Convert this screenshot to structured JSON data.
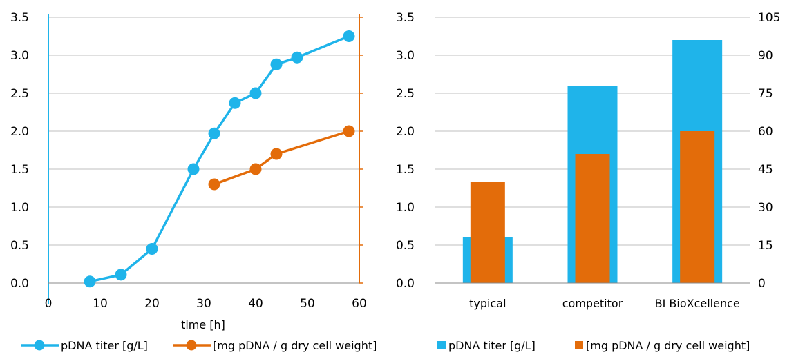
{
  "colors": {
    "blue": "#1fb4ea",
    "orange": "#e36c0a",
    "grid": "#bfbfbf",
    "axis": "#888888"
  },
  "chart_data": [
    {
      "type": "line",
      "xlabel": "time [h]",
      "xlim": [
        0,
        60
      ],
      "x_ticks": [
        "0",
        "10",
        "20",
        "30",
        "40",
        "50",
        "60"
      ],
      "ylim_left": [
        0,
        3.5
      ],
      "y_ticks_left": [
        "0.0",
        "0.5",
        "1.0",
        "1.5",
        "2.0",
        "2.5",
        "3.0",
        "3.5"
      ],
      "right_axis_labels": "none",
      "grid": "horizontal",
      "legend_position": "bottom",
      "series": [
        {
          "name": "pDNA titer [g/L]",
          "axis": "left",
          "color": "blue",
          "x": [
            8,
            14,
            20,
            28,
            32,
            36,
            40,
            44,
            48,
            58
          ],
          "y": [
            0.02,
            0.11,
            0.45,
            1.5,
            1.97,
            2.37,
            2.5,
            2.88,
            2.97,
            3.25
          ]
        },
        {
          "name": "[mg pDNA / g dry cell weight]",
          "axis": "left",
          "color": "orange",
          "x": [
            32,
            40,
            44,
            58
          ],
          "y": [
            1.3,
            1.5,
            1.7,
            2.0
          ]
        }
      ]
    },
    {
      "type": "bar",
      "categories": [
        "typical",
        "competitor",
        "BI BioXcellence"
      ],
      "ylim_left": [
        0,
        3.5
      ],
      "y_ticks_left": [
        "0.0",
        "0.5",
        "1.0",
        "1.5",
        "2.0",
        "2.5",
        "3.0",
        "3.5"
      ],
      "ylim_right": [
        0,
        105
      ],
      "y_ticks_right": [
        "0",
        "15",
        "30",
        "45",
        "60",
        "75",
        "90",
        "105"
      ],
      "grid": "horizontal",
      "legend_position": "bottom",
      "series": [
        {
          "name": "pDNA titer [g/L]",
          "axis": "left",
          "color": "blue",
          "values": [
            0.6,
            2.6,
            3.2
          ]
        },
        {
          "name": "[mg pDNA / g dry cell weight]",
          "axis": "right",
          "color": "orange",
          "values": [
            40,
            51,
            60
          ]
        }
      ]
    }
  ]
}
